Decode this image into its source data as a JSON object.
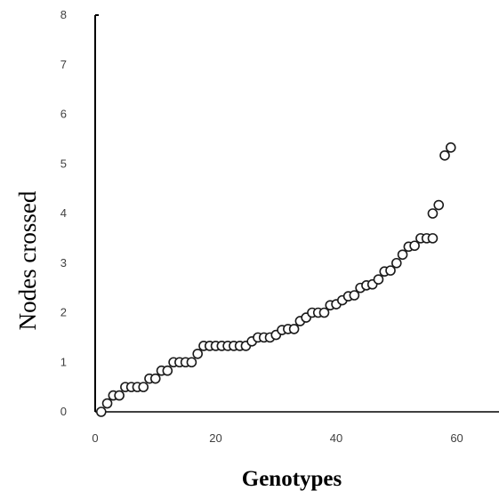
{
  "chart_data": {
    "type": "scatter",
    "xlabel": "Genotypes",
    "ylabel": "Nodes crossed",
    "xlim": [
      0,
      67
    ],
    "ylim": [
      0,
      8
    ],
    "x_ticks": [
      0,
      20,
      40,
      60
    ],
    "y_ticks": [
      0,
      1,
      2,
      3,
      4,
      5,
      6,
      7,
      8
    ],
    "grid": false,
    "legend": "none",
    "marker": "open-circle",
    "colors": {
      "axis": "#000000",
      "marker_edge": "#1a1a1a",
      "tick_label": "#404040"
    },
    "points": [
      [
        1,
        0.0
      ],
      [
        2,
        0.17
      ],
      [
        3,
        0.33
      ],
      [
        4,
        0.33
      ],
      [
        5,
        0.5
      ],
      [
        6,
        0.5
      ],
      [
        7,
        0.5
      ],
      [
        8,
        0.5
      ],
      [
        9,
        0.67
      ],
      [
        10,
        0.67
      ],
      [
        11,
        0.83
      ],
      [
        12,
        0.83
      ],
      [
        13,
        1.0
      ],
      [
        14,
        1.0
      ],
      [
        15,
        1.0
      ],
      [
        16,
        1.0
      ],
      [
        17,
        1.17
      ],
      [
        18,
        1.33
      ],
      [
        19,
        1.33
      ],
      [
        20,
        1.33
      ],
      [
        21,
        1.33
      ],
      [
        22,
        1.33
      ],
      [
        23,
        1.33
      ],
      [
        24,
        1.33
      ],
      [
        25,
        1.33
      ],
      [
        26,
        1.42
      ],
      [
        27,
        1.5
      ],
      [
        28,
        1.5
      ],
      [
        29,
        1.5
      ],
      [
        30,
        1.55
      ],
      [
        31,
        1.65
      ],
      [
        32,
        1.67
      ],
      [
        33,
        1.67
      ],
      [
        34,
        1.83
      ],
      [
        35,
        1.9
      ],
      [
        36,
        2.0
      ],
      [
        37,
        2.0
      ],
      [
        38,
        2.0
      ],
      [
        39,
        2.15
      ],
      [
        40,
        2.17
      ],
      [
        41,
        2.25
      ],
      [
        42,
        2.33
      ],
      [
        43,
        2.35
      ],
      [
        44,
        2.5
      ],
      [
        45,
        2.55
      ],
      [
        46,
        2.57
      ],
      [
        47,
        2.67
      ],
      [
        48,
        2.83
      ],
      [
        49,
        2.85
      ],
      [
        50,
        3.0
      ],
      [
        51,
        3.17
      ],
      [
        52,
        3.33
      ],
      [
        53,
        3.35
      ],
      [
        54,
        3.5
      ],
      [
        55,
        3.5
      ],
      [
        56,
        3.5
      ],
      [
        56,
        4.0
      ],
      [
        57,
        4.17
      ],
      [
        58,
        5.17
      ],
      [
        59,
        5.33
      ]
    ]
  }
}
